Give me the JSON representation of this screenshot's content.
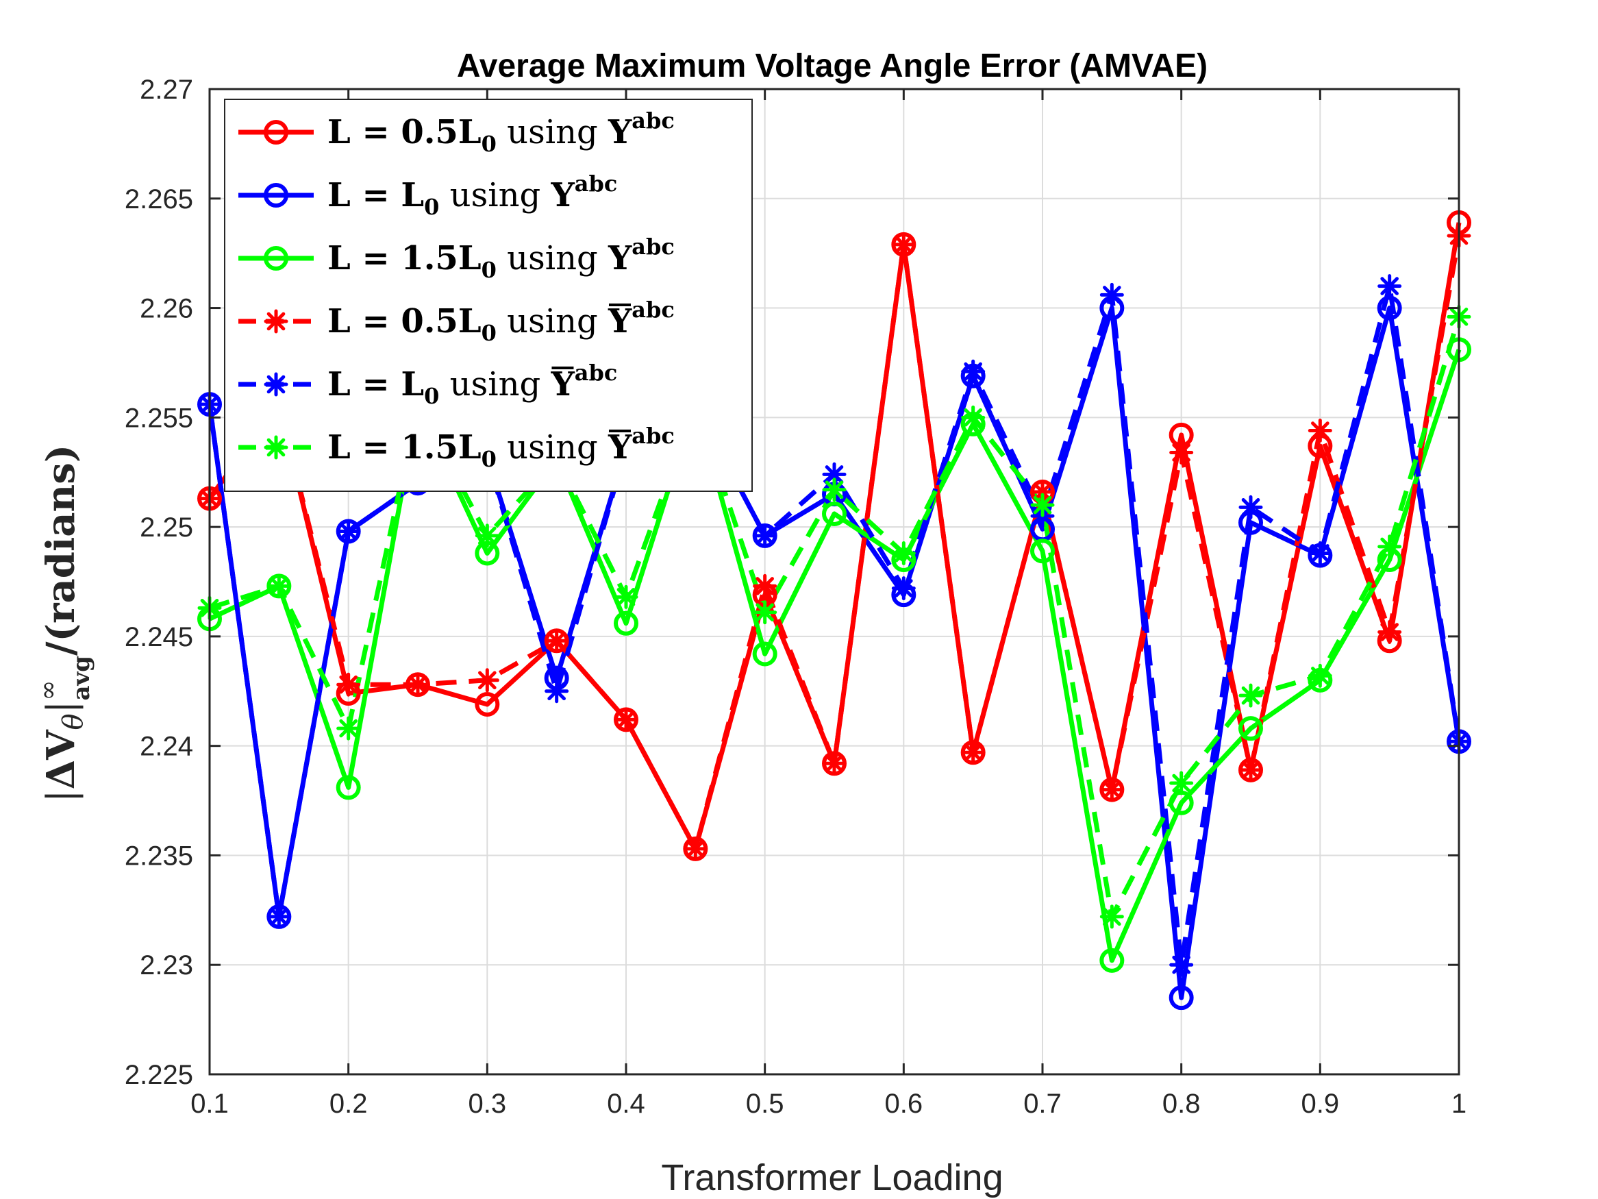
{
  "chart_data": {
    "type": "line",
    "title": "Average Maximum Voltage Angle Error (AMVAE)",
    "xlabel": "Transformer Loading",
    "ylabel": "|ΔVθ|∞avg/(radians)",
    "ylabel_parts": {
      "pre": "|",
      "delta": "Δ",
      "v": "V",
      "theta": "θ",
      "bar": "|",
      "sup": "∞",
      "sub": "avg",
      "post": "/(radians)"
    },
    "xlim": [
      0.1,
      1.0
    ],
    "ylim": [
      2.225,
      2.27
    ],
    "xticks": [
      "0.1",
      "0.2",
      "0.3",
      "0.4",
      "0.5",
      "0.6",
      "0.7",
      "0.8",
      "0.9",
      "1"
    ],
    "yticks": [
      "2.225",
      "2.23",
      "2.235",
      "2.24",
      "2.245",
      "2.25",
      "2.255",
      "2.26",
      "2.265",
      "2.27"
    ],
    "grid": true,
    "legend_position": "top-left",
    "x": [
      0.1,
      0.15,
      0.2,
      0.25,
      0.3,
      0.35,
      0.4,
      0.45,
      0.5,
      0.55,
      0.6,
      0.65,
      0.7,
      0.75,
      0.8,
      0.85,
      0.9,
      0.95,
      1.0
    ],
    "series": [
      {
        "name": "L = 0.5L0 using Yabc",
        "legend": {
          "pre": "L = 0.5L",
          "sub": "0",
          "mid": " using ",
          "sym": "Y",
          "bar": false,
          "sup": "abc"
        },
        "color": "#ff0000",
        "style": "solid",
        "marker": "circle",
        "values": [
          2.2513,
          2.2556,
          2.2424,
          2.2428,
          2.2419,
          2.2448,
          2.2412,
          2.2353,
          2.2469,
          2.2392,
          2.2629,
          2.2397,
          2.2516,
          2.238,
          2.2542,
          2.2389,
          2.2537,
          2.2448,
          2.2639
        ]
      },
      {
        "name": "L = L0 using Yabc",
        "legend": {
          "pre": "L = L",
          "sub": "0",
          "mid": " using ",
          "sym": "Y",
          "bar": false,
          "sup": "abc"
        },
        "color": "#0000ff",
        "style": "solid",
        "marker": "circle",
        "values": [
          2.2556,
          2.2322,
          2.2498,
          2.252,
          2.2532,
          2.2431,
          2.2536,
          2.2556,
          2.2496,
          2.2515,
          2.2469,
          2.2569,
          2.2499,
          2.26,
          2.2285,
          2.2502,
          2.2487,
          2.26,
          2.2402
        ]
      },
      {
        "name": "L = 1.5L0 using Yabc",
        "legend": {
          "pre": "L = 1.5L",
          "sub": "0",
          "mid": " using ",
          "sym": "Y",
          "bar": false,
          "sup": "abc"
        },
        "color": "#00ff00",
        "style": "solid",
        "marker": "circle",
        "values": [
          2.2458,
          2.2473,
          2.2381,
          2.2556,
          2.2488,
          2.2531,
          2.2456,
          2.2556,
          2.2442,
          2.2506,
          2.2485,
          2.2547,
          2.2489,
          2.2302,
          2.2374,
          2.2408,
          2.243,
          2.2485,
          2.2581
        ]
      },
      {
        "name": "L = 0.5L0 using Ȳabc",
        "legend": {
          "pre": "L = 0.5L",
          "sub": "0",
          "mid": " using ",
          "sym": "Y",
          "bar": true,
          "sup": "abc"
        },
        "color": "#ff0000",
        "style": "dashed",
        "marker": "asterisk",
        "values": [
          2.2513,
          2.2556,
          2.2428,
          2.2428,
          2.243,
          2.2448,
          2.2412,
          2.2353,
          2.2473,
          2.2392,
          2.2629,
          2.2397,
          2.2516,
          2.238,
          2.2534,
          2.2389,
          2.2544,
          2.2452,
          2.2633
        ]
      },
      {
        "name": "L = L0 using Ȳabc",
        "legend": {
          "pre": "L = L",
          "sub": "0",
          "mid": " using ",
          "sym": "Y",
          "bar": true,
          "sup": "abc"
        },
        "color": "#0000ff",
        "style": "dashed",
        "marker": "asterisk",
        "values": [
          2.2556,
          2.2322,
          2.2498,
          2.252,
          2.2532,
          2.2425,
          2.2536,
          2.2556,
          2.2496,
          2.2524,
          2.2472,
          2.2571,
          2.2505,
          2.2606,
          2.23,
          2.2509,
          2.2488,
          2.261,
          2.2402
        ]
      },
      {
        "name": "L = 1.5L0 using Ȳabc",
        "legend": {
          "pre": "L = 1.5L",
          "sub": "0",
          "mid": " using ",
          "sym": "Y",
          "bar": true,
          "sup": "abc"
        },
        "color": "#00ff00",
        "style": "dashed",
        "marker": "asterisk",
        "values": [
          2.2463,
          2.2473,
          2.2408,
          2.2556,
          2.2496,
          2.2531,
          2.2468,
          2.2556,
          2.2461,
          2.2517,
          2.2488,
          2.255,
          2.251,
          2.2322,
          2.2383,
          2.2423,
          2.2432,
          2.2491,
          2.2596
        ]
      }
    ]
  }
}
